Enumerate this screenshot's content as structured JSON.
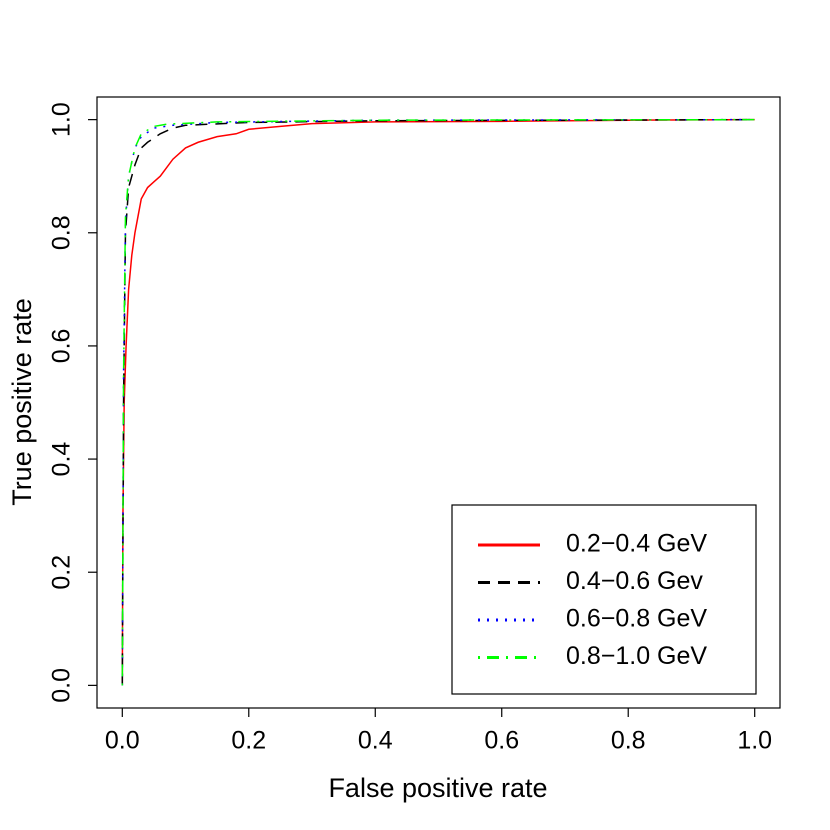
{
  "chart_data": {
    "type": "line",
    "xlabel": "False positive rate",
    "ylabel": "True positive rate",
    "xlim": [
      -0.04,
      1.04
    ],
    "ylim": [
      -0.04,
      1.04
    ],
    "xticks": [
      {
        "value": 0,
        "label": "0.0"
      },
      0.2,
      0.4,
      0.6,
      0.8,
      {
        "value": 1,
        "label": "1.0"
      }
    ],
    "yticks": [
      {
        "value": 0,
        "label": "0.0"
      },
      0.2,
      0.4,
      0.6,
      0.8,
      {
        "value": 1,
        "label": "1.0"
      }
    ],
    "legend": "bottom-right",
    "series": [
      {
        "name": "0.2−0.4 GeV",
        "color": "#ff0000",
        "dash": "solid",
        "x": [
          0,
          0.001,
          0.003,
          0.006,
          0.008,
          0.01,
          0.015,
          0.02,
          0.025,
          0.03,
          0.04,
          0.05,
          0.06,
          0.08,
          0.1,
          0.12,
          0.15,
          0.18,
          0.2,
          0.25,
          0.3,
          0.4,
          0.6,
          0.8,
          1
        ],
        "values": [
          0,
          0.3,
          0.5,
          0.6,
          0.65,
          0.7,
          0.76,
          0.8,
          0.83,
          0.86,
          0.88,
          0.89,
          0.9,
          0.93,
          0.95,
          0.96,
          0.97,
          0.975,
          0.983,
          0.988,
          0.993,
          0.996,
          0.997,
          0.999,
          1
        ]
      },
      {
        "name": "0.4−0.6 Gev",
        "color": "#000000",
        "dash": "dashed",
        "x": [
          0,
          0.002,
          0.005,
          0.01,
          0.02,
          0.03,
          0.04,
          0.06,
          0.08,
          0.1,
          0.2,
          0.4,
          1
        ],
        "values": [
          0,
          0.5,
          0.8,
          0.88,
          0.92,
          0.95,
          0.96,
          0.975,
          0.985,
          0.99,
          0.995,
          0.998,
          1
        ]
      },
      {
        "name": "0.6−0.8 GeV",
        "color": "#0000ff",
        "dash": "dotted",
        "x": [
          0,
          0.002,
          0.005,
          0.01,
          0.02,
          0.03,
          0.05,
          0.08,
          0.15,
          0.4,
          1
        ],
        "values": [
          0,
          0.55,
          0.82,
          0.9,
          0.95,
          0.97,
          0.985,
          0.99,
          0.995,
          0.999,
          1
        ]
      },
      {
        "name": "0.8−1.0 GeV",
        "color": "#00ff00",
        "dash": "dotdash",
        "x": [
          0,
          0.002,
          0.005,
          0.01,
          0.02,
          0.03,
          0.05,
          0.07,
          0.15,
          0.4,
          1
        ],
        "values": [
          0,
          0.55,
          0.83,
          0.9,
          0.95,
          0.975,
          0.988,
          0.992,
          0.996,
          0.999,
          1
        ]
      }
    ]
  }
}
